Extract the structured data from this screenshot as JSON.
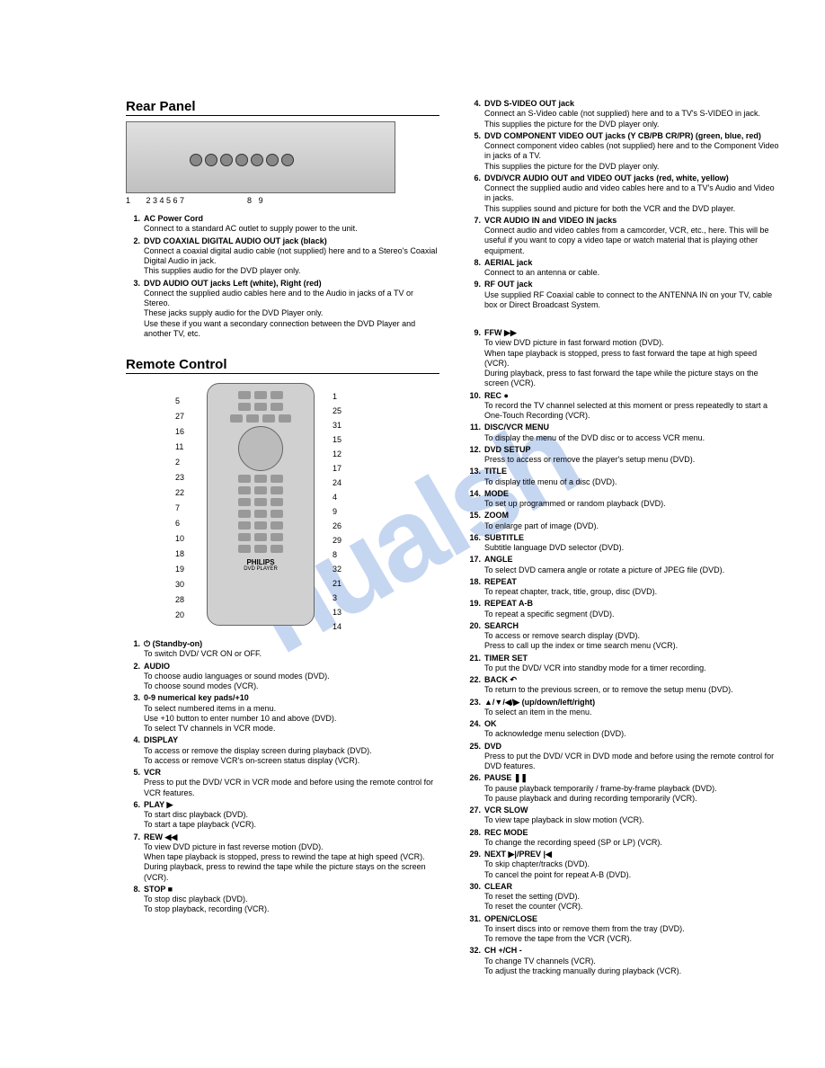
{
  "watermark": "nualsh",
  "sections": {
    "rear_panel_title": "Rear Panel",
    "remote_title": "Remote Control"
  },
  "rear_nums": "1       2 3 4 5 6 7                            8   9",
  "rear_panel": [
    {
      "n": "1.",
      "t": "AC Power Cord",
      "d": "Connect to a standard AC outlet to supply power to the unit."
    },
    {
      "n": "2.",
      "t": "DVD COAXIAL DIGITAL AUDIO OUT jack (black)",
      "d": "Connect a coaxial digital audio cable (not supplied) here and to a Stereo's Coaxial Digital Audio in jack.\nThis supplies audio for the DVD player only."
    },
    {
      "n": "3.",
      "t": "DVD AUDIO OUT jacks Left (white), Right (red)",
      "d": "Connect the supplied audio cables here and to the Audio in jacks of a TV or Stereo.\nThese jacks supply audio for the DVD Player only.\nUse these if you want a secondary connection between the DVD Player and another TV, etc."
    }
  ],
  "rear_panel_right": [
    {
      "n": "4.",
      "t": "DVD S-VIDEO OUT jack",
      "d": "Connect an S-Video cable (not supplied) here and to a TV's S-VIDEO in jack.\nThis supplies the picture for the DVD player only."
    },
    {
      "n": "5.",
      "t": "DVD COMPONENT VIDEO OUT jacks (Y CB/PB CR/PR) (green, blue, red)",
      "d": "Connect component video cables (not supplied) here and to the Component Video in jacks of a TV.\nThis supplies the picture for the DVD player only."
    },
    {
      "n": "6.",
      "t": "DVD/VCR AUDIO OUT and VIDEO OUT jacks (red, white, yellow)",
      "d": "Connect the supplied audio and video cables here and to a TV's Audio and Video in jacks.\nThis supplies sound and picture for both the VCR and the DVD player."
    },
    {
      "n": "7.",
      "t": "VCR AUDIO IN and VIDEO IN jacks",
      "d": "Connect audio and video cables from a camcorder, VCR, etc., here. This will be useful if you want to copy a video tape or watch material that is playing other equipment."
    },
    {
      "n": "8.",
      "t": "AERIAL jack",
      "d": "Connect to an antenna or cable."
    },
    {
      "n": "9.",
      "t": "RF OUT jack",
      "d": "Use supplied RF Coaxial cable to connect to the ANTENNA IN on your TV, cable box or Direct Broadcast System."
    }
  ],
  "remote_brand": "PHILIPS",
  "remote_sub": "DVD PLAYER",
  "callouts_left": [
    "5",
    "27",
    "16",
    "11",
    "2",
    "23",
    "22",
    "7",
    "6",
    "10",
    "18",
    "19",
    "30",
    "28",
    "20"
  ],
  "callouts_right": [
    "1",
    "25",
    "31",
    "15",
    "12",
    "17",
    "24",
    "4",
    "9",
    "26",
    "29",
    "8",
    "32",
    "21",
    "3",
    "13",
    "14"
  ],
  "remote_left": [
    {
      "n": "1.",
      "t": "⏻ (Standby-on)",
      "d": "To switch DVD/ VCR ON or OFF."
    },
    {
      "n": "2.",
      "t": "AUDIO",
      "d": "To choose audio languages or sound modes (DVD).\nTo choose sound modes (VCR)."
    },
    {
      "n": "3.",
      "t": "0-9 numerical key pads/+10",
      "d": "To select numbered items in a menu.\nUse +10 button to enter number 10 and above (DVD).\nTo select TV channels in VCR mode."
    },
    {
      "n": "4.",
      "t": "DISPLAY",
      "d": "To access or remove the display screen during playback (DVD).\nTo access or remove VCR's on-screen status display (VCR)."
    },
    {
      "n": "5.",
      "t": "VCR",
      "d": "Press to put the DVD/ VCR in VCR mode and before using the remote control for VCR features."
    },
    {
      "n": "6.",
      "t": "PLAY ▶",
      "d": "To start disc playback (DVD).\nTo start a tape playback (VCR)."
    },
    {
      "n": "7.",
      "t": "REW ◀◀",
      "d": "To view DVD picture in fast reverse motion (DVD).\nWhen tape playback is stopped, press to rewind the tape at high speed (VCR).\nDuring playback, press to rewind the tape while the picture stays on the screen (VCR)."
    },
    {
      "n": "8.",
      "t": "STOP ■",
      "d": "To stop disc playback (DVD).\nTo stop playback, recording (VCR)."
    }
  ],
  "remote_right": [
    {
      "n": "9.",
      "t": "FFW ▶▶",
      "d": "To view DVD picture in fast forward motion (DVD).\nWhen tape playback is stopped, press to fast forward the tape at high speed (VCR).\nDuring playback, press to fast forward the tape while the picture stays on the screen (VCR)."
    },
    {
      "n": "10.",
      "t": "REC ●",
      "d": "To record the TV channel selected at this moment or press repeatedly to start a One-Touch Recording (VCR)."
    },
    {
      "n": "11.",
      "t": "DISC/VCR MENU",
      "d": "To display the menu of the DVD disc or to access VCR menu."
    },
    {
      "n": "12.",
      "t": "DVD SETUP",
      "d": "Press to access or remove the player's setup menu (DVD)."
    },
    {
      "n": "13.",
      "t": "TITLE",
      "d": "To display title menu of a disc (DVD)."
    },
    {
      "n": "14.",
      "t": "MODE",
      "d": "To set up programmed or random playback (DVD)."
    },
    {
      "n": "15.",
      "t": "ZOOM",
      "d": "To enlarge part of image (DVD)."
    },
    {
      "n": "16.",
      "t": "SUBTITLE",
      "d": "Subtitle language DVD selector (DVD)."
    },
    {
      "n": "17.",
      "t": "ANGLE",
      "d": "To select DVD camera angle or rotate a picture of JPEG file (DVD)."
    },
    {
      "n": "18.",
      "t": "REPEAT",
      "d": "To repeat chapter, track, title, group, disc (DVD)."
    },
    {
      "n": "19.",
      "t": "REPEAT A-B",
      "d": "To repeat a specific segment (DVD)."
    },
    {
      "n": "20.",
      "t": "SEARCH",
      "d": "To access or remove search display (DVD).\nPress to call up the index or time search menu (VCR)."
    },
    {
      "n": "21.",
      "t": "TIMER SET",
      "d": "To put the DVD/ VCR into standby mode for a timer recording."
    },
    {
      "n": "22.",
      "t": "BACK ↶",
      "d": "To return to the previous screen, or to remove the setup menu (DVD)."
    },
    {
      "n": "23.",
      "t": "▲/▼/◀/▶ (up/down/left/right)",
      "d": "To select an item in the menu."
    },
    {
      "n": "24.",
      "t": "OK",
      "d": "To acknowledge menu selection (DVD)."
    },
    {
      "n": "25.",
      "t": "DVD",
      "d": "Press to put the DVD/ VCR in DVD mode and before using the remote control for DVD features."
    },
    {
      "n": "26.",
      "t": "PAUSE ❚❚",
      "d": "To pause playback temporarily / frame-by-frame playback (DVD).\nTo pause playback and during recording temporarily (VCR)."
    },
    {
      "n": "27.",
      "t": "VCR SLOW",
      "d": "To view tape playback in slow motion (VCR)."
    },
    {
      "n": "28.",
      "t": "REC MODE",
      "d": "To change the recording speed (SP or LP) (VCR)."
    },
    {
      "n": "29.",
      "t": "NEXT ▶|/PREV |◀",
      "d": "To skip chapter/tracks (DVD).\nTo cancel the point for repeat A-B (DVD)."
    },
    {
      "n": "30.",
      "t": "CLEAR",
      "d": "To reset the setting (DVD).\nTo reset the counter (VCR)."
    },
    {
      "n": "31.",
      "t": "OPEN/CLOSE",
      "d": "To insert discs into or remove them from the tray (DVD).\nTo remove the tape from the VCR (VCR)."
    },
    {
      "n": "32.",
      "t": "CH +/CH -",
      "d": "To change TV channels (VCR).\nTo adjust the tracking manually during playback (VCR)."
    }
  ]
}
